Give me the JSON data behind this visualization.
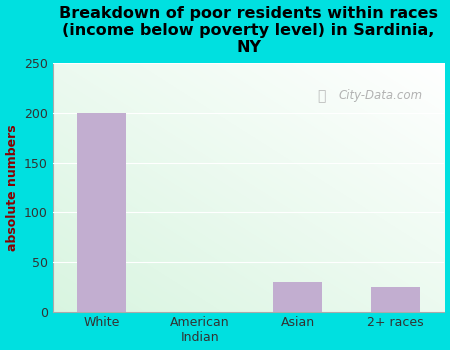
{
  "title": "Breakdown of poor residents within races\n(income below poverty level) in Sardinia,\nNY",
  "categories": [
    "White",
    "American\nIndian",
    "Asian",
    "2+ races"
  ],
  "values": [
    200,
    0,
    30,
    25
  ],
  "bar_color": "#c2aed0",
  "ylabel": "absolute numbers",
  "ylim": [
    0,
    250
  ],
  "yticks": [
    0,
    50,
    100,
    150,
    200,
    250
  ],
  "bg_color": "#00e0e0",
  "watermark": "City-Data.com",
  "title_fontsize": 11.5,
  "ylabel_fontsize": 9,
  "tick_fontsize": 9
}
